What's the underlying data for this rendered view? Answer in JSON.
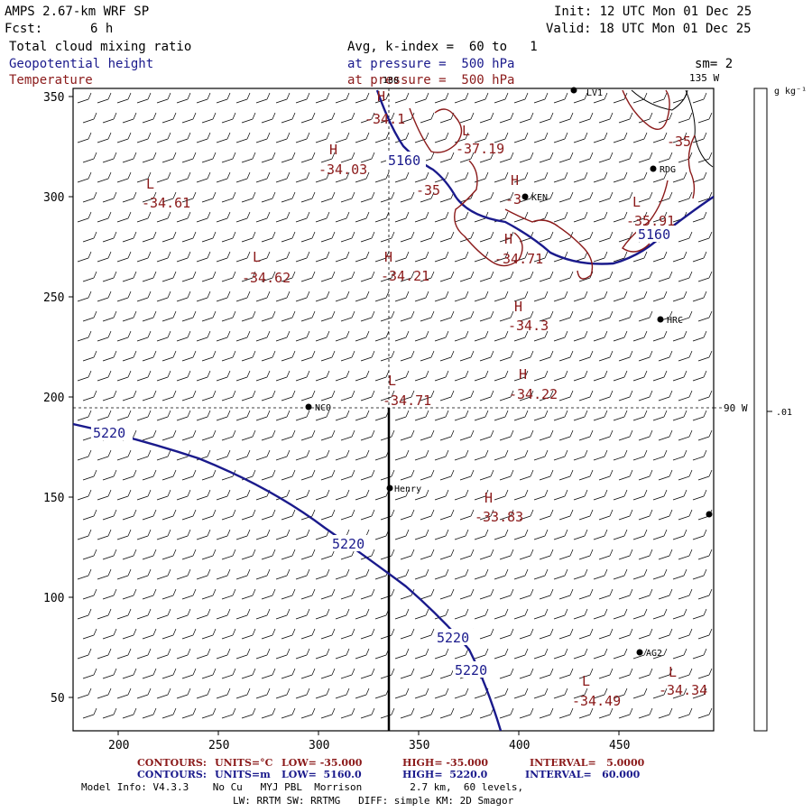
{
  "header": {
    "model": "AMPS 2.67-km WRF SP",
    "init": "Init: 12 UTC Mon 01 Dec 25",
    "fcst_label": "Fcst:",
    "fcst_value": "6 h",
    "valid": "Valid: 18 UTC Mon 01 Dec 25",
    "field1": "Total cloud mixing ratio",
    "field1_detail": "Avg, k-index =  60 to   1",
    "field2": "Geopotential height",
    "field2_detail": "at pressure =  500 hPa",
    "field3": "Temperature",
    "field3_detail": "at pressure =  500 hPa",
    "sm": "sm= 2",
    "lon135": "135 W",
    "lon90": "90 W",
    "colorbar_units": "g kg⁻¹",
    "colorbar_value": ".01"
  },
  "colors": {
    "height_contour": "#1a1a8c",
    "temp_contour": "#8b1a1a",
    "frame": "#000000"
  },
  "axes": {
    "x_ticks": [
      "200",
      "250",
      "300",
      "350",
      "400",
      "450"
    ],
    "y_ticks": [
      "50",
      "100",
      "150",
      "200",
      "250",
      "300",
      "350"
    ]
  },
  "stations": [
    "LV1",
    "RDG",
    "KEN",
    "HRC",
    "NCO",
    "Henry",
    "AG2"
  ],
  "height_labels": [
    "5160",
    "5160",
    "5220",
    "5220",
    "5220",
    "5220"
  ],
  "temp_extrema": [
    {
      "letter": "H",
      "value": "-34.1"
    },
    {
      "letter": "L",
      "value": "-37.19"
    },
    {
      "letter": "H",
      "value": "-34.03"
    },
    {
      "letter": "L",
      "value": "-34.61"
    },
    {
      "letter": "H",
      "value": "-3"
    },
    {
      "letter": "L",
      "value": "-35.91"
    },
    {
      "letter": "H",
      "value": "-34.71"
    },
    {
      "letter": "L",
      "value": "-34.62"
    },
    {
      "letter": "H",
      "value": "-34.21"
    },
    {
      "letter": "H",
      "value": "-34.3"
    },
    {
      "letter": "L",
      "value": "-34.71"
    },
    {
      "letter": "H",
      "value": "-34.22"
    },
    {
      "letter": "H",
      "value": "-33.83"
    },
    {
      "letter": "L",
      "value": "-34.49"
    },
    {
      "letter": "L",
      "value": "-34.34"
    }
  ],
  "temp_contour_labels": [
    "-35",
    "-35"
  ],
  "top_label": "180",
  "footer": {
    "contours_red_label": "CONTOURS:",
    "contours_red_units": "UNITS=°C",
    "contours_red_low": "LOW= -35.000",
    "contours_red_high": "HIGH= -35.000",
    "contours_red_interval": "INTERVAL=   5.0000",
    "contours_blue_label": "CONTOURS:",
    "contours_blue_units": "UNITS=m",
    "contours_blue_low": "LOW=  5160.0",
    "contours_blue_high": "HIGH=  5220.0",
    "contours_blue_interval": "INTERVAL=   60.000",
    "model_info": "Model Info: V4.3.3    No Cu   MYJ PBL  Morrison        2.7 km,  60 levels,",
    "model_info2": "LW: RRTM SW: RRTMG   DIFF: simple KM: 2D Smagor"
  }
}
